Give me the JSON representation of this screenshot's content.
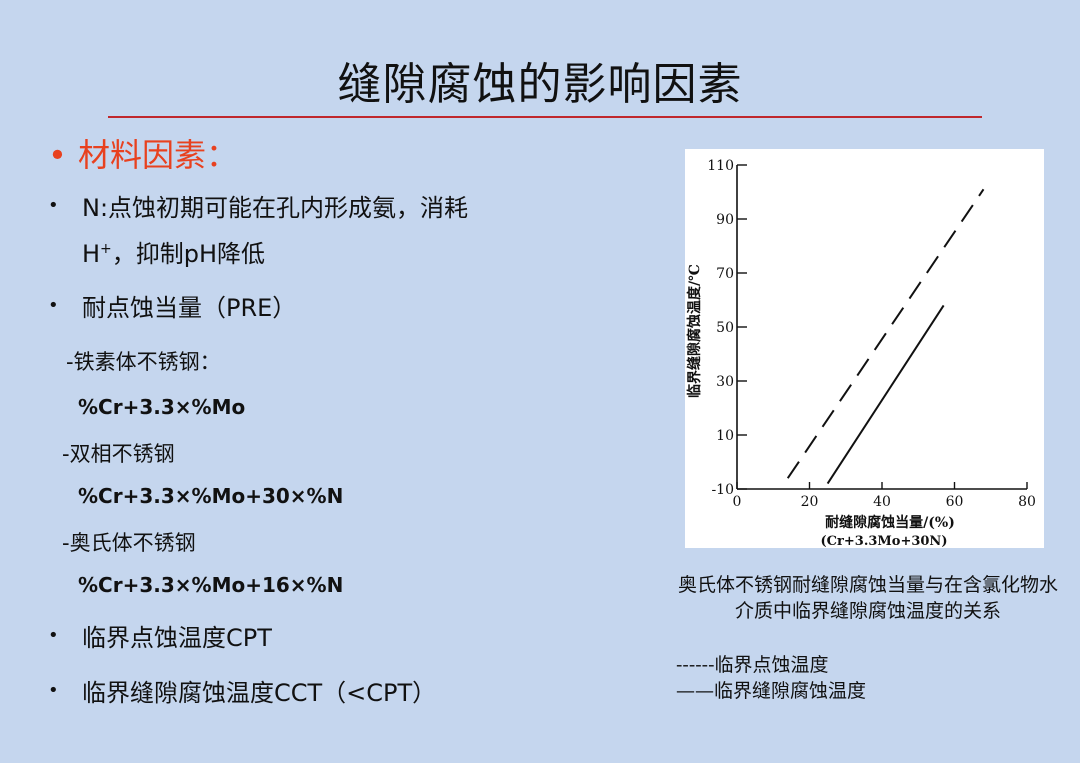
{
  "slide": {
    "title": "缝隙腐蚀的影响因素",
    "heading": "材料因素：",
    "bullet_glyph": "•",
    "n_line1": "N:点蚀初期可能在孔内形成氨，消耗",
    "n_line2_a": "H",
    "n_line2_sup": "+",
    "n_line2_b": "，抑制pH降低",
    "pre_label": "耐点蚀当量（PRE）",
    "ferritic_label": "-铁素体不锈钢：",
    "ferritic_formula": "%Cr+3.3×%Mo",
    "duplex_label": "-双相不锈钢",
    "duplex_formula": "%Cr+3.3×%Mo+30×%N",
    "austenitic_label": "-奥氏体不锈钢",
    "austenitic_formula": "%Cr+3.3×%Mo+16×%N",
    "cpt_label": "临界点蚀温度CPT",
    "cct_label": "临界缝隙腐蚀温度CCT（<CPT）"
  },
  "figure": {
    "caption": "奥氏体不锈钢耐缝隙腐蚀当量与在含氯化物水介质中临界缝隙腐蚀温度的关系",
    "legend_dashed": "------临界点蚀温度",
    "legend_solid": "——临界缝隙腐蚀温度"
  },
  "chart_data": {
    "type": "line",
    "xlabel": "耐缝隙腐蚀当量/(%)",
    "xlabel_sub": "(Cr+3.3Mo+30N)",
    "ylabel": "临界缝隙腐蚀温度/℃",
    "xlim": [
      0,
      80
    ],
    "ylim": [
      -10,
      110
    ],
    "x_ticks": [
      "0",
      "20",
      "40",
      "60",
      "80"
    ],
    "y_ticks": [
      "-10",
      "10",
      "30",
      "50",
      "70",
      "90",
      "110"
    ],
    "x_tick_values": [
      0,
      20,
      40,
      60,
      80
    ],
    "y_tick_values": [
      -10,
      10,
      30,
      50,
      70,
      90,
      110
    ],
    "series": [
      {
        "style": "dashed",
        "x": [
          14,
          68
        ],
        "y": [
          -6,
          101
        ]
      },
      {
        "style": "solid",
        "x": [
          25,
          57
        ],
        "y": [
          -8,
          58
        ]
      }
    ],
    "grid": false
  }
}
